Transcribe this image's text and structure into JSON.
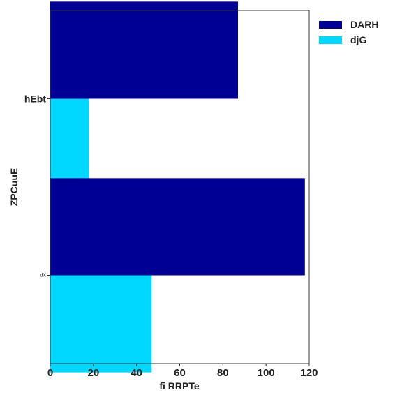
{
  "chart_data": {
    "type": "bar",
    "orientation": "horizontal",
    "categories": [
      "hEbt",
      "dX"
    ],
    "series": [
      {
        "name": "DARH",
        "values": [
          87,
          118
        ],
        "color": "#000094"
      },
      {
        "name": "djG",
        "values": [
          18,
          47
        ],
        "color": "#00d8ff"
      }
    ],
    "xlabel": "fi RRPTe",
    "ylabel": "ZPCuuE",
    "xlim": [
      0,
      120
    ],
    "xticks": [
      0,
      20,
      40,
      60,
      80,
      100,
      120
    ],
    "grid": false,
    "legend_position": "outside-top-right"
  }
}
